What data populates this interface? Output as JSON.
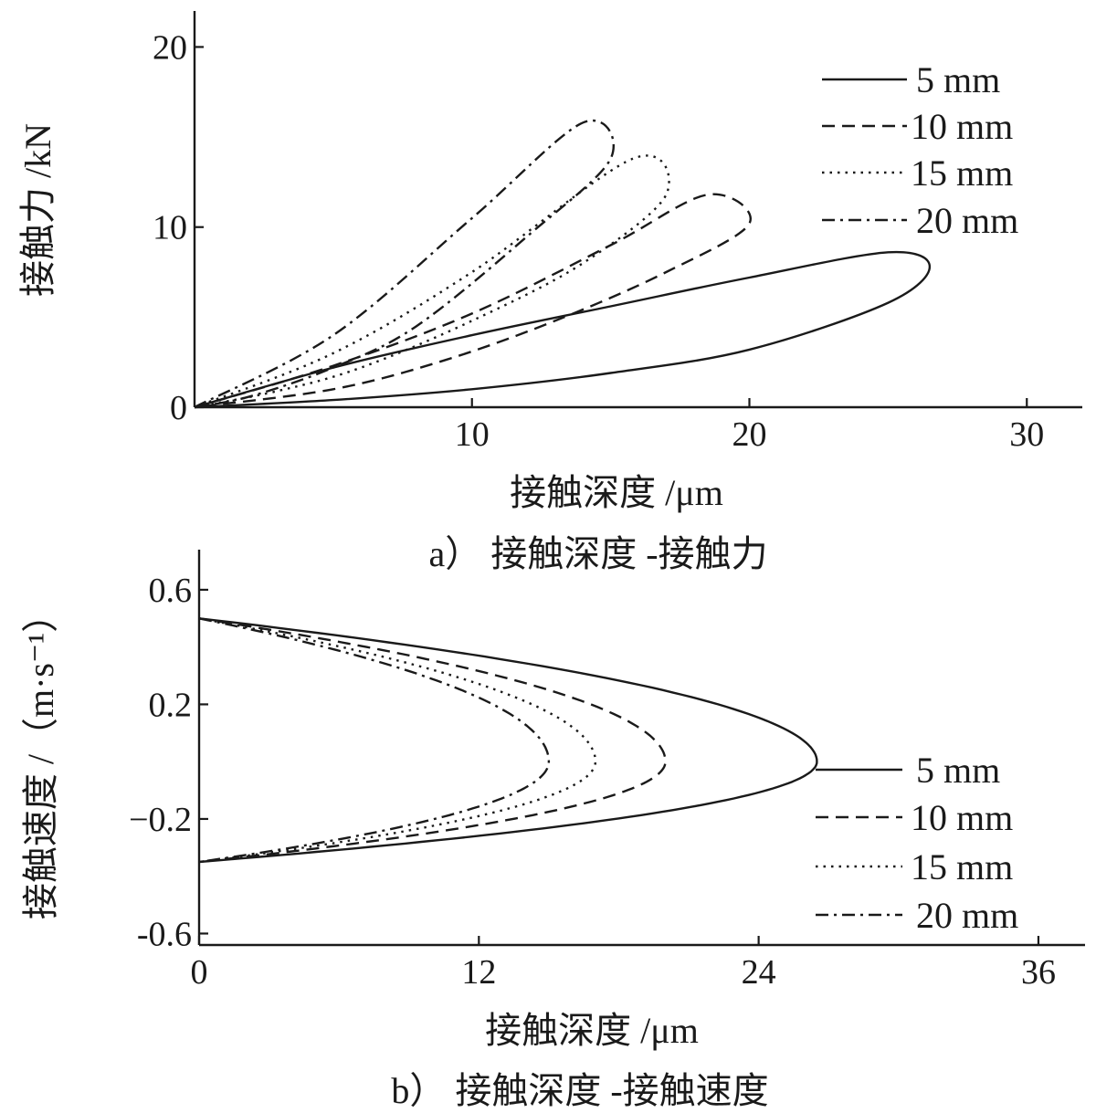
{
  "chart_data": [
    {
      "type": "line",
      "panel": "a",
      "caption": "a） 接触深度 -接触力",
      "xlabel": "接触深度 /μm",
      "ylabel": "接触力 /kN",
      "xlim": [
        0,
        32
      ],
      "ylim": [
        0,
        22
      ],
      "xticks": [
        10,
        20,
        30
      ],
      "yticks": [
        0,
        10,
        20
      ],
      "grid": false,
      "legend_position": "top-right",
      "series": [
        {
          "name": "5 mm",
          "style": "solid",
          "loading_x": [
            0,
            5,
            10,
            15,
            20,
            25,
            26.5
          ],
          "loading_y": [
            0,
            2.2,
            4.0,
            5.6,
            7.2,
            8.6,
            7.8
          ],
          "unloading_x": [
            26.5,
            25,
            20,
            15,
            10,
            5,
            0
          ],
          "unloading_y": [
            7.8,
            5.8,
            3.2,
            1.9,
            1.0,
            0.4,
            0
          ]
        },
        {
          "name": "10 mm",
          "style": "dashed",
          "loading_x": [
            0,
            5,
            10,
            15,
            18.5,
            20
          ],
          "loading_y": [
            0,
            2.3,
            5.2,
            9.0,
            11.8,
            10.2
          ],
          "unloading_x": [
            20,
            17,
            13,
            9,
            5,
            0
          ],
          "unloading_y": [
            10.2,
            7.5,
            4.8,
            2.6,
            1.0,
            0
          ]
        },
        {
          "name": "15 mm",
          "style": "dotted",
          "loading_x": [
            0,
            5,
            10,
            15.8,
            17
          ],
          "loading_y": [
            0,
            3.0,
            7.5,
            13.8,
            11.8
          ],
          "unloading_x": [
            17,
            14,
            10,
            6,
            3,
            0
          ],
          "unloading_y": [
            11.8,
            8.0,
            4.8,
            2.2,
            0.9,
            0
          ]
        },
        {
          "name": "20 mm",
          "style": "dash-dot",
          "loading_x": [
            0,
            5,
            10,
            14,
            15
          ],
          "loading_y": [
            0,
            4.0,
            10.5,
            15.8,
            13.8
          ],
          "unloading_x": [
            15,
            12,
            8,
            5,
            2,
            0
          ],
          "unloading_y": [
            13.8,
            9.5,
            4.5,
            2.2,
            0.6,
            0
          ]
        }
      ]
    },
    {
      "type": "line",
      "panel": "b",
      "caption": "b） 接触深度 -接触速度",
      "xlabel": "接触深度 /μm",
      "ylabel": "接触速度 /（m·s⁻¹）",
      "xlim": [
        0,
        38
      ],
      "ylim": [
        -0.64,
        0.74
      ],
      "xticks": [
        0,
        12,
        24,
        36
      ],
      "yticks": [
        0.6,
        0.2,
        -0.2,
        -0.6
      ],
      "ytick_labels": [
        "0.6",
        "0.2",
        "−0.2",
        "-0.6"
      ],
      "grid": false,
      "legend_position": "right",
      "series": [
        {
          "name": "5 mm",
          "style": "solid",
          "max_depth": 26.5,
          "v_start": 0.5,
          "v_end": -0.35
        },
        {
          "name": "10 mm",
          "style": "dashed",
          "max_depth": 20.0,
          "v_start": 0.5,
          "v_end": -0.35
        },
        {
          "name": "15 mm",
          "style": "dotted",
          "max_depth": 17.0,
          "v_start": 0.5,
          "v_end": -0.35
        },
        {
          "name": "20 mm",
          "style": "dash-dot",
          "max_depth": 15.0,
          "v_start": 0.5,
          "v_end": -0.35
        }
      ]
    }
  ]
}
